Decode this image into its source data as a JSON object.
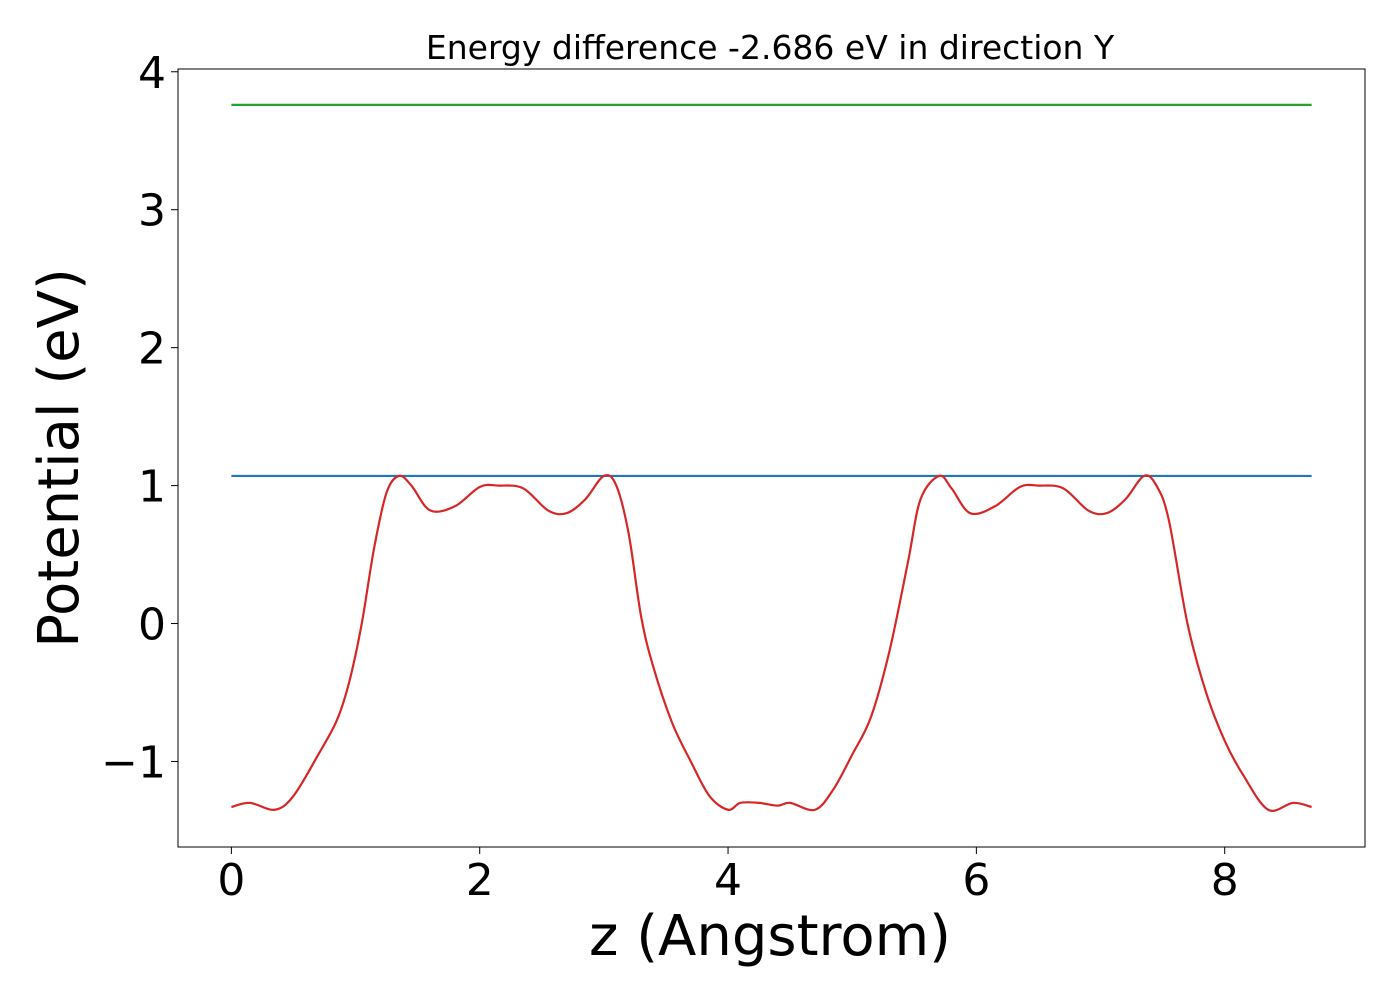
{
  "chart_data": {
    "type": "line",
    "title": "Energy difference -2.686 eV in direction Y",
    "xlabel": "z (Angstrom)",
    "ylabel": "Potential (eV)",
    "xlim": [
      -0.43,
      9.13
    ],
    "ylim": [
      -1.62,
      4.02
    ],
    "xticks": [
      0,
      2,
      4,
      6,
      8
    ],
    "xtick_labels": [
      "0",
      "2",
      "4",
      "6",
      "8"
    ],
    "yticks": [
      -1,
      0,
      1,
      2,
      3,
      4
    ],
    "ytick_labels": [
      "−1",
      "0",
      "1",
      "2",
      "3",
      "4"
    ],
    "grid": false,
    "legend": "none",
    "series": [
      {
        "color": "#2ca02c",
        "x": [
          0,
          8.7
        ],
        "y": [
          3.76,
          3.76
        ]
      },
      {
        "color": "#1f77b4",
        "x": [
          0,
          8.7
        ],
        "y": [
          1.07,
          1.07
        ]
      },
      {
        "color": "#d62728",
        "x": [
          0.0,
          0.15,
          0.35,
          0.5,
          0.7,
          0.85,
          0.95,
          1.05,
          1.15,
          1.25,
          1.35,
          1.45,
          1.6,
          1.8,
          2.0,
          2.15,
          2.35,
          2.55,
          2.7,
          2.85,
          3.0,
          3.1,
          3.2,
          3.3,
          3.4,
          3.55,
          3.7,
          3.85,
          4.0,
          4.1,
          4.25,
          4.4,
          4.5,
          4.7,
          4.85,
          5.0,
          5.15,
          5.3,
          5.45,
          5.55,
          5.7,
          5.8,
          5.95,
          6.15,
          6.35,
          6.5,
          6.7,
          6.9,
          7.05,
          7.2,
          7.35,
          7.45,
          7.55,
          7.7,
          7.85,
          8.0,
          8.15,
          8.35,
          8.55,
          8.7
        ],
        "y": [
          -1.33,
          -1.3,
          -1.35,
          -1.25,
          -0.95,
          -0.7,
          -0.42,
          0.0,
          0.55,
          0.95,
          1.07,
          1.0,
          0.82,
          0.85,
          0.99,
          1.0,
          0.98,
          0.82,
          0.8,
          0.9,
          1.07,
          1.0,
          0.65,
          0.05,
          -0.32,
          -0.72,
          -1.0,
          -1.25,
          -1.35,
          -1.3,
          -1.3,
          -1.32,
          -1.3,
          -1.35,
          -1.2,
          -0.95,
          -0.68,
          -0.2,
          0.45,
          0.9,
          1.07,
          0.98,
          0.8,
          0.85,
          0.99,
          1.0,
          0.98,
          0.82,
          0.8,
          0.9,
          1.07,
          1.0,
          0.75,
          0.0,
          -0.5,
          -0.85,
          -1.1,
          -1.35,
          -1.3,
          -1.33
        ]
      }
    ]
  }
}
